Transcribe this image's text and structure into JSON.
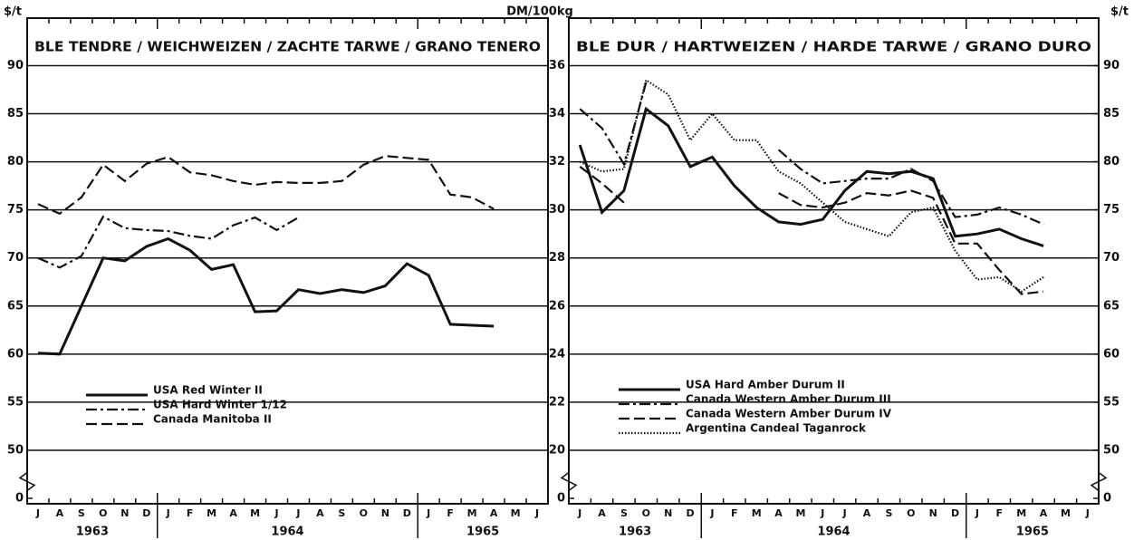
{
  "chart_data": [
    {
      "type": "line",
      "title": "BLE TENDRE / WEICHWEIZEN / ZACHTE TARWE / GRANO TENERO",
      "ylabel": "$/t",
      "categories": [
        "J",
        "A",
        "S",
        "O",
        "N",
        "D",
        "J",
        "F",
        "M",
        "A",
        "M",
        "J",
        "J",
        "A",
        "S",
        "O",
        "N",
        "D",
        "J",
        "F",
        "M",
        "A",
        "M",
        "J"
      ],
      "years": [
        1963,
        1964,
        1965
      ],
      "ylim": [
        0,
        94
      ],
      "ybreak": [
        0,
        50
      ],
      "yticks": [
        0,
        50,
        55,
        60,
        65,
        70,
        75,
        80,
        85,
        90
      ],
      "grid": true,
      "legend": "lower left",
      "series": [
        {
          "name": "USA Red Winter II",
          "color": "#111",
          "dash": "solid",
          "values": [
            60.1,
            60.0,
            65,
            70,
            69.7,
            71.2,
            72,
            70.8,
            68.8,
            69.3,
            64.4,
            64.5,
            66.7,
            66.3,
            66.7,
            66.4,
            67.1,
            69.4,
            68.2,
            63.1,
            63.0,
            62.9,
            null,
            null
          ]
        },
        {
          "name": "USA Hard Winter  1/12",
          "color": "#111",
          "dash": "dashdot",
          "values": [
            70,
            69,
            70.2,
            74.3,
            73.1,
            72.9,
            72.8,
            72.3,
            72.0,
            73.4,
            74.2,
            72.9,
            74.2,
            null,
            null,
            null,
            null,
            null,
            null,
            null,
            null,
            null,
            null,
            null
          ]
        },
        {
          "name": "Canada Manitoba II",
          "color": "#111",
          "dash": "dash",
          "values": [
            75.6,
            74.6,
            76.3,
            79.7,
            78,
            79.8,
            80.5,
            78.9,
            78.6,
            78,
            77.6,
            77.9,
            77.8,
            77.8,
            78,
            79.7,
            80.6,
            80.4,
            80.2,
            76.6,
            76.3,
            75.1,
            null,
            null
          ]
        }
      ]
    },
    {
      "type": "line",
      "title": "BLE DUR / HARTWEIZEN / HARDE TARWE / GRANO DURO",
      "ylabel": "DM/100kg",
      "y2label": "$/t",
      "categories": [
        "J",
        "A",
        "S",
        "O",
        "N",
        "D",
        "J",
        "F",
        "M",
        "A",
        "M",
        "J",
        "J",
        "A",
        "S",
        "O",
        "N",
        "D",
        "J",
        "F",
        "M",
        "A",
        "M",
        "J"
      ],
      "years": [
        1963,
        1964,
        1965
      ],
      "ylim": [
        0,
        37.6
      ],
      "ybreak": [
        0,
        20
      ],
      "yticks": [
        0,
        20,
        22,
        24,
        26,
        28,
        30,
        32,
        34,
        36
      ],
      "y2lim": [
        0,
        94
      ],
      "y2break": [
        0,
        50
      ],
      "y2ticks": [
        0,
        50,
        55,
        60,
        65,
        70,
        75,
        80,
        85,
        90
      ],
      "grid": true,
      "legend": "lower left",
      "series": [
        {
          "name": "USA Hard Amber Durum II",
          "color": "#111",
          "dash": "solid",
          "values": [
            32.7,
            29.9,
            30.8,
            34.2,
            33.5,
            31.8,
            32.2,
            31.0,
            30.1,
            29.5,
            29.4,
            29.6,
            30.8,
            31.6,
            31.5,
            31.6,
            31.3,
            28.9,
            29.0,
            29.2,
            28.8,
            28.5,
            null,
            null
          ]
        },
        {
          "name": "Canada Western Amber Durum III",
          "color": "#111",
          "dash": "dashdot",
          "values": [
            34.2,
            33.4,
            31.9,
            35.3,
            null,
            null,
            null,
            null,
            null,
            32.5,
            31.7,
            31.1,
            31.2,
            31.3,
            31.3,
            31.7,
            31.2,
            29.7,
            29.8,
            30.1,
            29.8,
            29.4,
            null,
            null
          ]
        },
        {
          "name": "Canada Western Amber Durum IV",
          "color": "#111",
          "dash": "dash",
          "values": [
            31.8,
            31.1,
            30.3,
            null,
            null,
            null,
            null,
            null,
            null,
            30.7,
            30.2,
            30.1,
            30.3,
            30.7,
            30.6,
            30.8,
            30.5,
            28.6,
            28.6,
            27.5,
            26.5,
            26.6,
            null,
            null
          ]
        },
        {
          "name": "Argentina Candeal Taganrock",
          "color": "#111",
          "dash": "dot",
          "values": [
            32.0,
            31.6,
            31.7,
            35.4,
            34.8,
            32.9,
            34.0,
            32.9,
            32.9,
            31.6,
            31.1,
            30.3,
            29.5,
            29.2,
            28.9,
            29.9,
            30.1,
            28.3,
            27.1,
            27.2,
            26.6,
            27.2,
            null,
            null
          ]
        }
      ]
    }
  ]
}
